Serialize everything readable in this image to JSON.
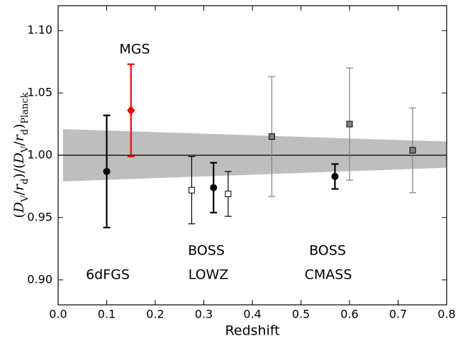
{
  "chart_data": {
    "type": "errorbar",
    "x_label": "Redshift",
    "y_label": [
      "(",
      "D",
      "V",
      "/",
      "r",
      "d",
      ")/(",
      "D",
      "V",
      "/",
      "r",
      "d",
      ")",
      "Planck"
    ],
    "xlim": [
      0.0,
      0.8
    ],
    "ylim": [
      0.88,
      1.12
    ],
    "xticks": [
      {
        "value": 0.0,
        "label": "0.0"
      },
      {
        "value": 0.1,
        "label": "0.1"
      },
      {
        "value": 0.2,
        "label": "0.2"
      },
      {
        "value": 0.3,
        "label": "0.3"
      },
      {
        "value": 0.4,
        "label": "0.4"
      },
      {
        "value": 0.5,
        "label": "0.5"
      },
      {
        "value": 0.6,
        "label": "0.6"
      },
      {
        "value": 0.7,
        "label": "0.7"
      },
      {
        "value": 0.8,
        "label": "0.8"
      }
    ],
    "yticks": [
      {
        "value": 0.9,
        "label": "0.90"
      },
      {
        "value": 0.95,
        "label": "0.95"
      },
      {
        "value": 1.0,
        "label": "1.00"
      },
      {
        "value": 1.05,
        "label": "1.05"
      },
      {
        "value": 1.1,
        "label": "1.10"
      }
    ],
    "reference_line": 1.0,
    "band": {
      "x": [
        0.01,
        0.8
      ],
      "upper": [
        1.021,
        1.011
      ],
      "lower": [
        0.979,
        0.99
      ],
      "color": "#bebebe"
    },
    "series": [
      {
        "x": [
          0.1,
          0.32,
          0.57
        ],
        "values": [
          0.987,
          0.974,
          0.983
        ],
        "errors": [
          0.045,
          0.02,
          0.01
        ],
        "marker": "circle",
        "color": "#000000",
        "fill": "#000000"
      },
      {
        "x": [
          0.15
        ],
        "values": [
          1.036
        ],
        "errors": [
          0.037
        ],
        "marker": "diamond",
        "color": "#ff0000",
        "fill": "#ff0000"
      },
      {
        "x": [
          0.275,
          0.35
        ],
        "values": [
          0.972,
          0.969
        ],
        "errors": [
          0.027,
          0.018
        ],
        "marker": "square",
        "color": "#000000",
        "fill": "#ffffff"
      },
      {
        "x": [
          0.44,
          0.6,
          0.73
        ],
        "values": [
          1.015,
          1.025,
          1.004
        ],
        "errors": [
          0.048,
          0.045,
          0.034
        ],
        "marker": "square",
        "color": "#808080",
        "fill": "#808080"
      }
    ],
    "annotations": [
      {
        "text": "MGS",
        "color": "#ff0000"
      },
      {
        "text": "6dFGS"
      },
      {
        "text": "BOSS"
      },
      {
        "text": "LOWZ"
      },
      {
        "text": "BOSS"
      },
      {
        "text": "CMASS"
      }
    ]
  }
}
